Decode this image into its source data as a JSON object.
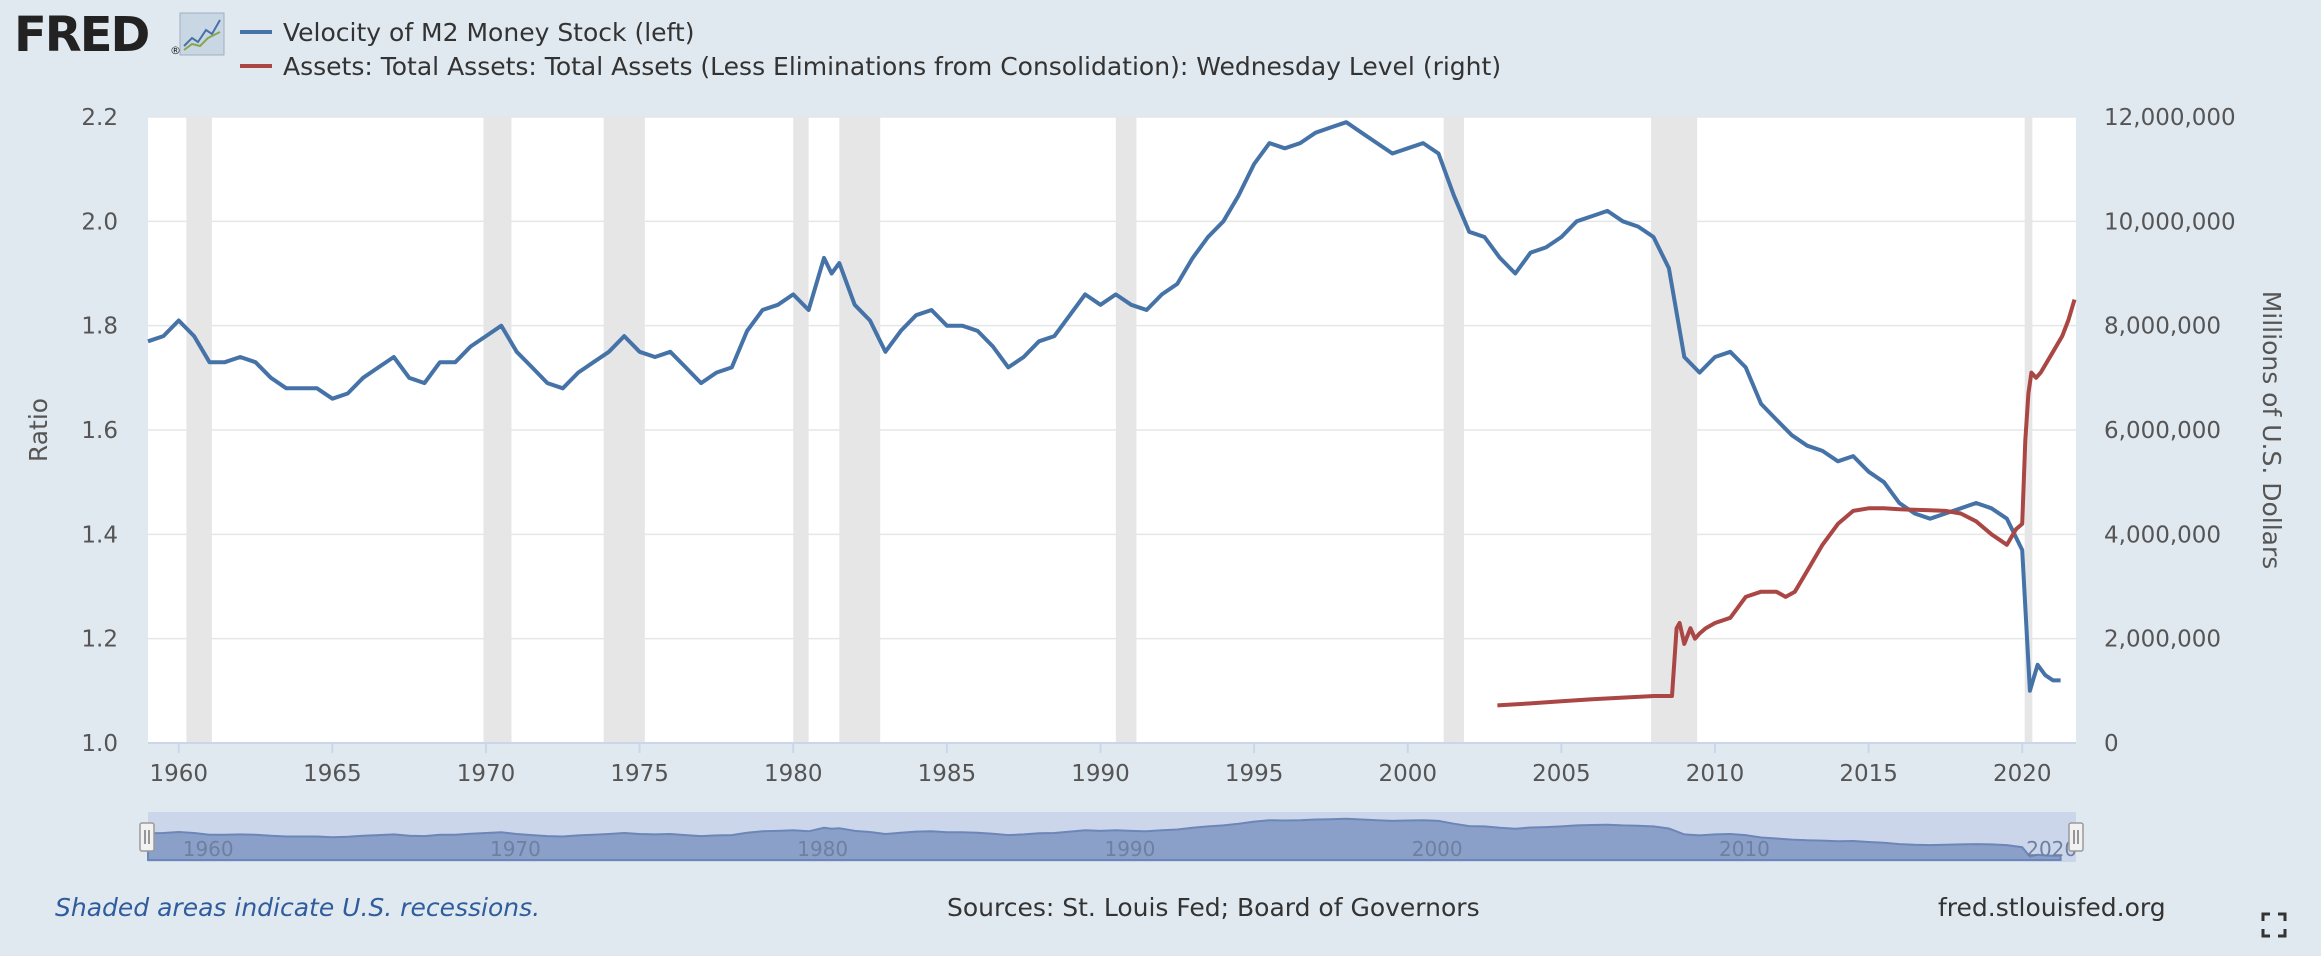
{
  "logo": {
    "text": "FRED",
    "reg_mark": "®"
  },
  "legend": [
    {
      "label": "Velocity of M2 Money Stock (left)",
      "color": "#4572a7"
    },
    {
      "label": "Assets: Total Assets: Total Assets (Less Eliminations from Consolidation): Wednesday Level (right)",
      "color": "#aa4643"
    }
  ],
  "footer": {
    "note": "Shaded areas indicate U.S. recessions.",
    "sources": "Sources: St. Louis Fed; Board of Governors",
    "site": "fred.stlouisfed.org"
  },
  "chart_data": {
    "type": "line",
    "title": "",
    "xlabel": "",
    "ylabel_left": "Ratio",
    "ylabel_right": "Millions of U.S. Dollars",
    "xlim": [
      1959.0,
      2021.75
    ],
    "ylim_left": [
      1.0,
      2.2
    ],
    "ylim_right": [
      0,
      12000000
    ],
    "x_ticks": [
      "1960",
      "1965",
      "1970",
      "1975",
      "1980",
      "1985",
      "1990",
      "1995",
      "2000",
      "2005",
      "2010",
      "2015",
      "2020"
    ],
    "y_ticks_left": [
      "1.0",
      "1.2",
      "1.4",
      "1.6",
      "1.8",
      "2.0",
      "2.2"
    ],
    "y_ticks_right": [
      "0",
      "2,000,000",
      "4,000,000",
      "6,000,000",
      "8,000,000",
      "10,000,000",
      "12,000,000"
    ],
    "grid": true,
    "recessions": [
      [
        1960.25,
        1961.08
      ],
      [
        1969.92,
        1970.83
      ],
      [
        1973.83,
        1975.17
      ],
      [
        1980.0,
        1980.5
      ],
      [
        1981.5,
        1982.83
      ],
      [
        1990.5,
        1991.17
      ],
      [
        2001.17,
        2001.83
      ],
      [
        2007.92,
        2009.42
      ],
      [
        2020.08,
        2020.33
      ]
    ],
    "series": [
      {
        "name": "Velocity of M2 Money Stock",
        "axis": "left",
        "x": [
          1959.0,
          1959.5,
          1960.0,
          1960.5,
          1961.0,
          1961.5,
          1962.0,
          1962.5,
          1963.0,
          1963.5,
          1964.0,
          1964.5,
          1965.0,
          1965.5,
          1966.0,
          1966.5,
          1967.0,
          1967.5,
          1968.0,
          1968.5,
          1969.0,
          1969.5,
          1970.0,
          1970.5,
          1971.0,
          1971.5,
          1972.0,
          1972.5,
          1973.0,
          1973.5,
          1974.0,
          1974.5,
          1975.0,
          1975.5,
          1976.0,
          1976.5,
          1977.0,
          1977.5,
          1978.0,
          1978.5,
          1979.0,
          1979.5,
          1980.0,
          1980.5,
          1981.0,
          1981.25,
          1981.5,
          1982.0,
          1982.5,
          1983.0,
          1983.5,
          1984.0,
          1984.5,
          1985.0,
          1985.5,
          1986.0,
          1986.5,
          1987.0,
          1987.5,
          1988.0,
          1988.5,
          1989.0,
          1989.5,
          1990.0,
          1990.5,
          1991.0,
          1991.5,
          1992.0,
          1992.5,
          1993.0,
          1993.5,
          1994.0,
          1994.5,
          1995.0,
          1995.5,
          1996.0,
          1996.5,
          1997.0,
          1997.5,
          1998.0,
          1998.5,
          1999.0,
          1999.5,
          2000.0,
          2000.5,
          2001.0,
          2001.5,
          2002.0,
          2002.5,
          2003.0,
          2003.5,
          2004.0,
          2004.5,
          2005.0,
          2005.5,
          2006.0,
          2006.5,
          2007.0,
          2007.5,
          2008.0,
          2008.5,
          2009.0,
          2009.5,
          2010.0,
          2010.5,
          2011.0,
          2011.5,
          2012.0,
          2012.5,
          2013.0,
          2013.5,
          2014.0,
          2014.5,
          2015.0,
          2015.5,
          2016.0,
          2016.5,
          2017.0,
          2017.5,
          2018.0,
          2018.5,
          2019.0,
          2019.5,
          2020.0,
          2020.25,
          2020.5,
          2020.75,
          2021.0,
          2021.25
        ],
        "values": [
          1.77,
          1.78,
          1.81,
          1.78,
          1.73,
          1.73,
          1.74,
          1.73,
          1.7,
          1.68,
          1.68,
          1.68,
          1.66,
          1.67,
          1.7,
          1.72,
          1.74,
          1.7,
          1.69,
          1.73,
          1.73,
          1.76,
          1.78,
          1.8,
          1.75,
          1.72,
          1.69,
          1.68,
          1.71,
          1.73,
          1.75,
          1.78,
          1.75,
          1.74,
          1.75,
          1.72,
          1.69,
          1.71,
          1.72,
          1.79,
          1.83,
          1.84,
          1.86,
          1.83,
          1.93,
          1.9,
          1.92,
          1.84,
          1.81,
          1.75,
          1.79,
          1.82,
          1.83,
          1.8,
          1.8,
          1.79,
          1.76,
          1.72,
          1.74,
          1.77,
          1.78,
          1.82,
          1.86,
          1.84,
          1.86,
          1.84,
          1.83,
          1.86,
          1.88,
          1.93,
          1.97,
          2.0,
          2.05,
          2.11,
          2.15,
          2.14,
          2.15,
          2.17,
          2.18,
          2.19,
          2.17,
          2.15,
          2.13,
          2.14,
          2.15,
          2.13,
          2.05,
          1.98,
          1.97,
          1.93,
          1.9,
          1.94,
          1.95,
          1.97,
          2.0,
          2.01,
          2.02,
          2.0,
          1.99,
          1.97,
          1.91,
          1.74,
          1.71,
          1.74,
          1.75,
          1.72,
          1.65,
          1.62,
          1.59,
          1.57,
          1.56,
          1.54,
          1.55,
          1.52,
          1.5,
          1.46,
          1.44,
          1.43,
          1.44,
          1.45,
          1.46,
          1.45,
          1.43,
          1.37,
          1.1,
          1.15,
          1.13,
          1.12,
          1.12
        ]
      },
      {
        "name": "Assets: Total Assets: Total Assets (Less Eliminations from Consolidation): Wednesday Level",
        "axis": "right",
        "x": [
          2002.92,
          2004.0,
          2005.0,
          2006.0,
          2007.0,
          2008.0,
          2008.6,
          2008.75,
          2008.85,
          2009.0,
          2009.2,
          2009.35,
          2009.5,
          2009.7,
          2010.0,
          2010.5,
          2011.0,
          2011.5,
          2012.0,
          2012.3,
          2012.6,
          2013.0,
          2013.5,
          2014.0,
          2014.5,
          2015.0,
          2015.5,
          2016.0,
          2016.5,
          2017.0,
          2017.5,
          2018.0,
          2018.5,
          2019.0,
          2019.5,
          2019.8,
          2020.0,
          2020.1,
          2020.2,
          2020.3,
          2020.45,
          2020.6,
          2021.0,
          2021.3,
          2021.5,
          2021.7
        ],
        "values": [
          720000,
          760000,
          800000,
          840000,
          870000,
          900000,
          900000,
          2200000,
          2300000,
          1900000,
          2200000,
          2000000,
          2100000,
          2200000,
          2300000,
          2400000,
          2800000,
          2900000,
          2900000,
          2800000,
          2900000,
          3300000,
          3800000,
          4200000,
          4450000,
          4500000,
          4500000,
          4480000,
          4470000,
          4460000,
          4450000,
          4400000,
          4250000,
          4000000,
          3800000,
          4100000,
          4200000,
          5800000,
          6700000,
          7100000,
          7000000,
          7100000,
          7500000,
          7800000,
          8100000,
          8500000
        ]
      }
    ]
  }
}
